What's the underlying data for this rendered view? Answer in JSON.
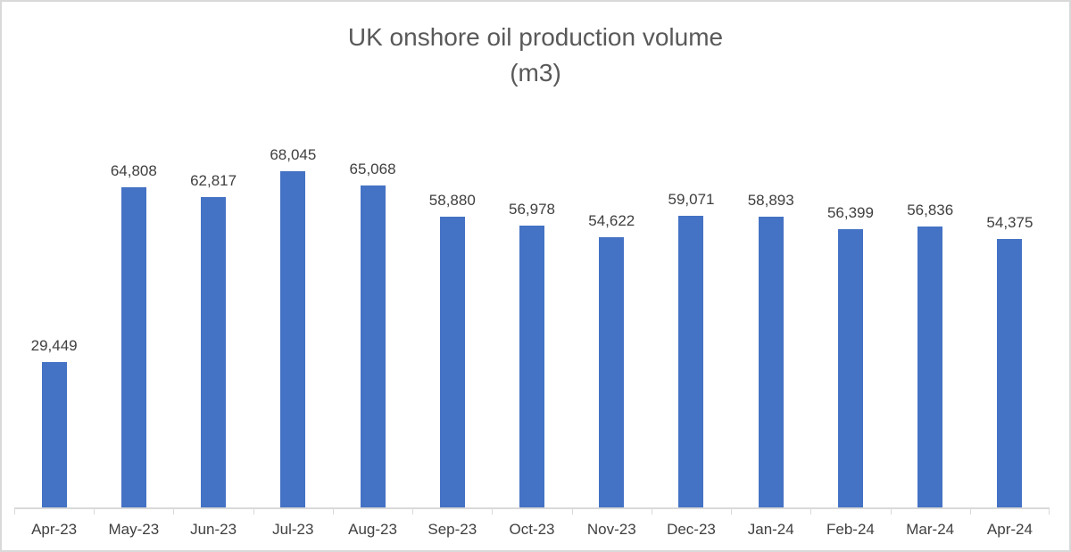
{
  "chart_data": {
    "type": "bar",
    "title": "UK onshore oil production volume",
    "subtitle": "(m3)",
    "categories": [
      "Apr-23",
      "May-23",
      "Jun-23",
      "Jul-23",
      "Aug-23",
      "Sep-23",
      "Oct-23",
      "Nov-23",
      "Dec-23",
      "Jan-24",
      "Feb-24",
      "Mar-24",
      "Apr-24"
    ],
    "values": [
      29449,
      64808,
      62817,
      68045,
      65068,
      58880,
      56978,
      54622,
      59071,
      58893,
      56399,
      56836,
      54375
    ],
    "value_labels": [
      "29,449",
      "64,808",
      "62,817",
      "68,045",
      "65,068",
      "58,880",
      "56,978",
      "54,622",
      "59,071",
      "58,893",
      "56,399",
      "56,836",
      "54,375"
    ],
    "xlabel": "",
    "ylabel": "",
    "ylim": [
      0,
      70000
    ],
    "grid": false,
    "legend": false,
    "colors": {
      "bar": "#4472C4",
      "title_text": "#595959",
      "label_text": "#404040",
      "axis": "#d9d9d9"
    }
  }
}
